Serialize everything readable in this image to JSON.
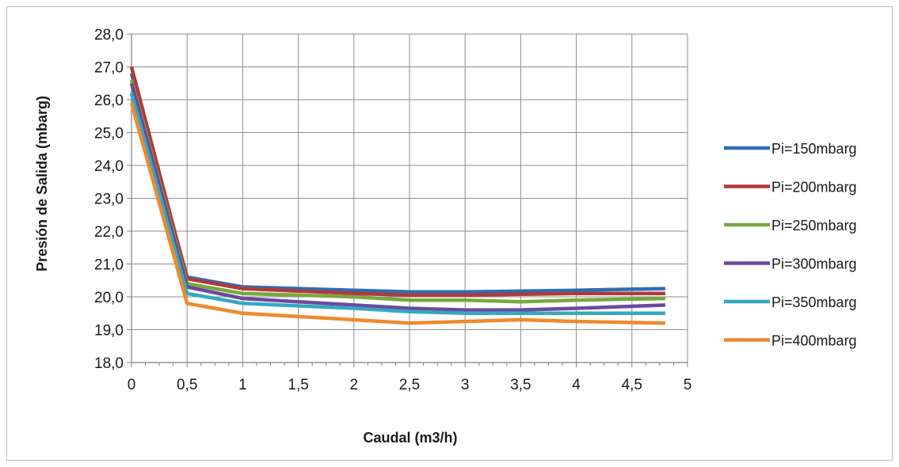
{
  "chart_data": {
    "type": "line",
    "title": "",
    "xlabel": "Caudal (m3/h)",
    "ylabel": "Presión de Salida (mbarg)",
    "xlim": [
      0,
      5
    ],
    "ylim": [
      18,
      28
    ],
    "x_ticks": [
      0,
      0.5,
      1,
      1.5,
      2,
      2.5,
      3,
      3.5,
      4,
      4.5,
      5
    ],
    "x_tick_labels": [
      "0",
      "0,5",
      "1",
      "1,5",
      "2",
      "2,5",
      "3",
      "3,5",
      "4",
      "4,5",
      "5"
    ],
    "y_ticks": [
      18,
      19,
      20,
      21,
      22,
      23,
      24,
      25,
      26,
      27,
      28
    ],
    "y_tick_labels": [
      "18,0",
      "19,0",
      "20,0",
      "21,0",
      "22,0",
      "23,0",
      "24,0",
      "25,0",
      "26,0",
      "27,0",
      "28,0"
    ],
    "grid": true,
    "legend_position": "right",
    "series": [
      {
        "name": "Pi=150mbarg",
        "color": "#2e6db4",
        "points": [
          [
            0,
            26.8
          ],
          [
            0.5,
            20.6
          ],
          [
            1,
            20.3
          ],
          [
            2,
            20.2
          ],
          [
            2.5,
            20.15
          ],
          [
            3,
            20.15
          ],
          [
            4,
            20.2
          ],
          [
            4.8,
            20.25
          ]
        ]
      },
      {
        "name": "Pi=200mbarg",
        "color": "#b03a3a",
        "points": [
          [
            0,
            27.0
          ],
          [
            0.5,
            20.55
          ],
          [
            1,
            20.25
          ],
          [
            2,
            20.1
          ],
          [
            2.5,
            20.05
          ],
          [
            3,
            20.05
          ],
          [
            4,
            20.1
          ],
          [
            4.8,
            20.1
          ]
        ]
      },
      {
        "name": "Pi=250mbarg",
        "color": "#77a840",
        "points": [
          [
            0,
            26.6
          ],
          [
            0.5,
            20.4
          ],
          [
            1,
            20.1
          ],
          [
            2,
            20.0
          ],
          [
            2.5,
            19.9
          ],
          [
            3,
            19.9
          ],
          [
            3.5,
            19.85
          ],
          [
            4,
            19.9
          ],
          [
            4.8,
            19.95
          ]
        ]
      },
      {
        "name": "Pi=300mbarg",
        "color": "#6a4a9c",
        "points": [
          [
            0,
            26.5
          ],
          [
            0.5,
            20.3
          ],
          [
            1,
            19.95
          ],
          [
            2,
            19.75
          ],
          [
            2.5,
            19.65
          ],
          [
            3,
            19.6
          ],
          [
            3.5,
            19.6
          ],
          [
            4,
            19.65
          ],
          [
            4.8,
            19.75
          ]
        ]
      },
      {
        "name": "Pi=350mbarg",
        "color": "#35a8c0",
        "points": [
          [
            0,
            26.2
          ],
          [
            0.5,
            20.1
          ],
          [
            1,
            19.8
          ],
          [
            2,
            19.65
          ],
          [
            2.5,
            19.55
          ],
          [
            3,
            19.5
          ],
          [
            3.5,
            19.5
          ],
          [
            4,
            19.5
          ],
          [
            4.8,
            19.5
          ]
        ]
      },
      {
        "name": "Pi=400mbarg",
        "color": "#ef8a2e",
        "points": [
          [
            0,
            25.9
          ],
          [
            0.5,
            19.8
          ],
          [
            1,
            19.5
          ],
          [
            2,
            19.3
          ],
          [
            2.5,
            19.2
          ],
          [
            3,
            19.25
          ],
          [
            3.5,
            19.3
          ],
          [
            4,
            19.25
          ],
          [
            4.8,
            19.2
          ]
        ]
      }
    ]
  }
}
